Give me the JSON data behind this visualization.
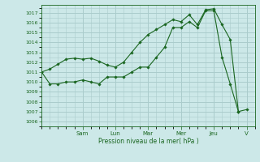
{
  "bg_color": "#cce8e8",
  "grid_color": "#aacccc",
  "line_color": "#1a6620",
  "marker_color": "#1a6620",
  "xlabel": "Pression niveau de la mer( hPa )",
  "ylim": [
    1005.5,
    1017.8
  ],
  "xlim": [
    0,
    13.0
  ],
  "yticks": [
    1006,
    1007,
    1008,
    1009,
    1010,
    1011,
    1012,
    1013,
    1014,
    1015,
    1016,
    1017
  ],
  "day_labels": [
    "Sam",
    "Lun",
    "Mar",
    "Mer",
    "Jeu",
    "V"
  ],
  "day_positions": [
    2.5,
    4.5,
    6.5,
    8.5,
    10.5,
    12.5
  ],
  "series1_x": [
    0.0,
    0.5,
    1.0,
    1.5,
    2.0,
    2.5,
    3.0,
    3.5,
    4.0,
    4.5,
    5.0,
    5.5,
    6.0,
    6.5,
    7.0,
    7.5,
    8.0,
    8.5,
    9.0,
    9.5,
    10.0,
    10.5,
    11.0,
    11.5,
    12.0,
    12.5
  ],
  "series1_y": [
    1011.0,
    1009.8,
    1009.8,
    1010.0,
    1010.0,
    1010.2,
    1010.0,
    1009.8,
    1010.5,
    1010.5,
    1010.5,
    1011.0,
    1011.5,
    1011.5,
    1012.5,
    1013.5,
    1015.5,
    1015.5,
    1016.1,
    1015.5,
    1017.2,
    1017.2,
    1012.5,
    1009.8,
    1007.0,
    1007.2
  ],
  "series2_x": [
    0.0,
    0.5,
    1.0,
    1.5,
    2.0,
    2.5,
    3.0,
    3.5,
    4.0,
    4.5,
    5.0,
    5.5,
    6.0,
    6.5,
    7.0,
    7.5,
    8.0,
    8.5,
    9.0,
    9.5,
    10.0,
    10.5,
    11.0,
    11.5,
    12.0
  ],
  "series2_y": [
    1011.0,
    1011.3,
    1011.8,
    1012.3,
    1012.4,
    1012.3,
    1012.4,
    1012.1,
    1011.7,
    1011.5,
    1012.0,
    1013.0,
    1014.0,
    1014.8,
    1015.3,
    1015.8,
    1016.3,
    1016.1,
    1016.8,
    1015.8,
    1017.3,
    1017.4,
    1015.8,
    1014.3,
    1007.0
  ]
}
